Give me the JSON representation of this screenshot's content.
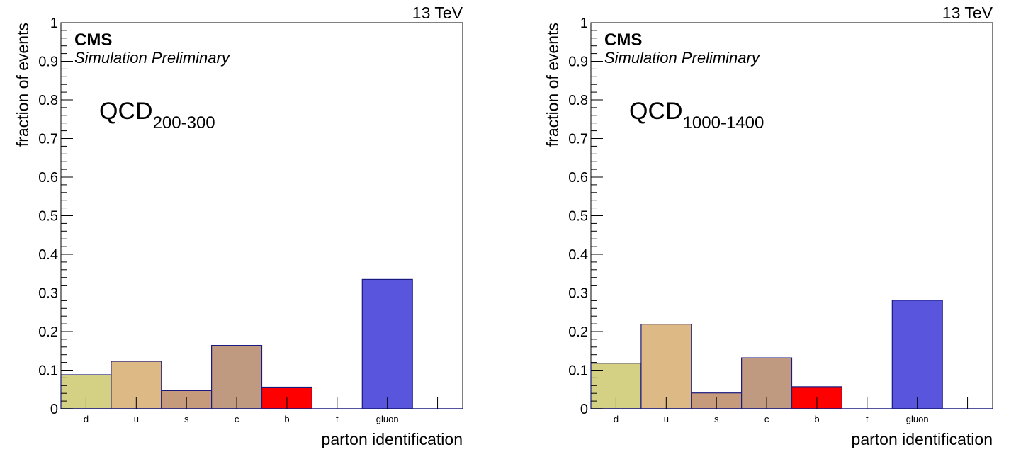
{
  "chart_data": [
    {
      "type": "bar",
      "energy_label": "13 TeV",
      "experiment": "CMS",
      "status": "Simulation Preliminary",
      "sample_main": "QCD",
      "sample_sub": "200-300",
      "xlabel": "parton identification",
      "ylabel": "fraction of events",
      "ylim": [
        0,
        1
      ],
      "yticks": [
        "0",
        "0.1",
        "0.2",
        "0.3",
        "0.4",
        "0.5",
        "0.6",
        "0.7",
        "0.8",
        "0.9",
        "1"
      ],
      "categories": [
        "d",
        "u",
        "s",
        "c",
        "b",
        "t",
        "gluon",
        ""
      ],
      "values": [
        0.088,
        0.123,
        0.047,
        0.164,
        0.056,
        0.0,
        0.335,
        0.0
      ],
      "colors": [
        "#d4d084",
        "#ddb985",
        "#c69b7b",
        "#bf9a80",
        "#ff0000",
        "#ffffff",
        "#5a55dd",
        "#ffffff"
      ],
      "grid": false
    },
    {
      "type": "bar",
      "energy_label": "13 TeV",
      "experiment": "CMS",
      "status": "Simulation Preliminary",
      "sample_main": "QCD",
      "sample_sub": "1000-1400",
      "xlabel": "parton identification",
      "ylabel": "fraction of events",
      "ylim": [
        0,
        1
      ],
      "yticks": [
        "0",
        "0.1",
        "0.2",
        "0.3",
        "0.4",
        "0.5",
        "0.6",
        "0.7",
        "0.8",
        "0.9",
        "1"
      ],
      "categories": [
        "d",
        "u",
        "s",
        "c",
        "b",
        "t",
        "gluon",
        ""
      ],
      "values": [
        0.118,
        0.219,
        0.041,
        0.132,
        0.057,
        0.0,
        0.281,
        0.0
      ],
      "colors": [
        "#d4d084",
        "#ddb985",
        "#c69b7b",
        "#bf9a80",
        "#ff0000",
        "#ffffff",
        "#5a55dd",
        "#ffffff"
      ],
      "grid": false
    }
  ]
}
